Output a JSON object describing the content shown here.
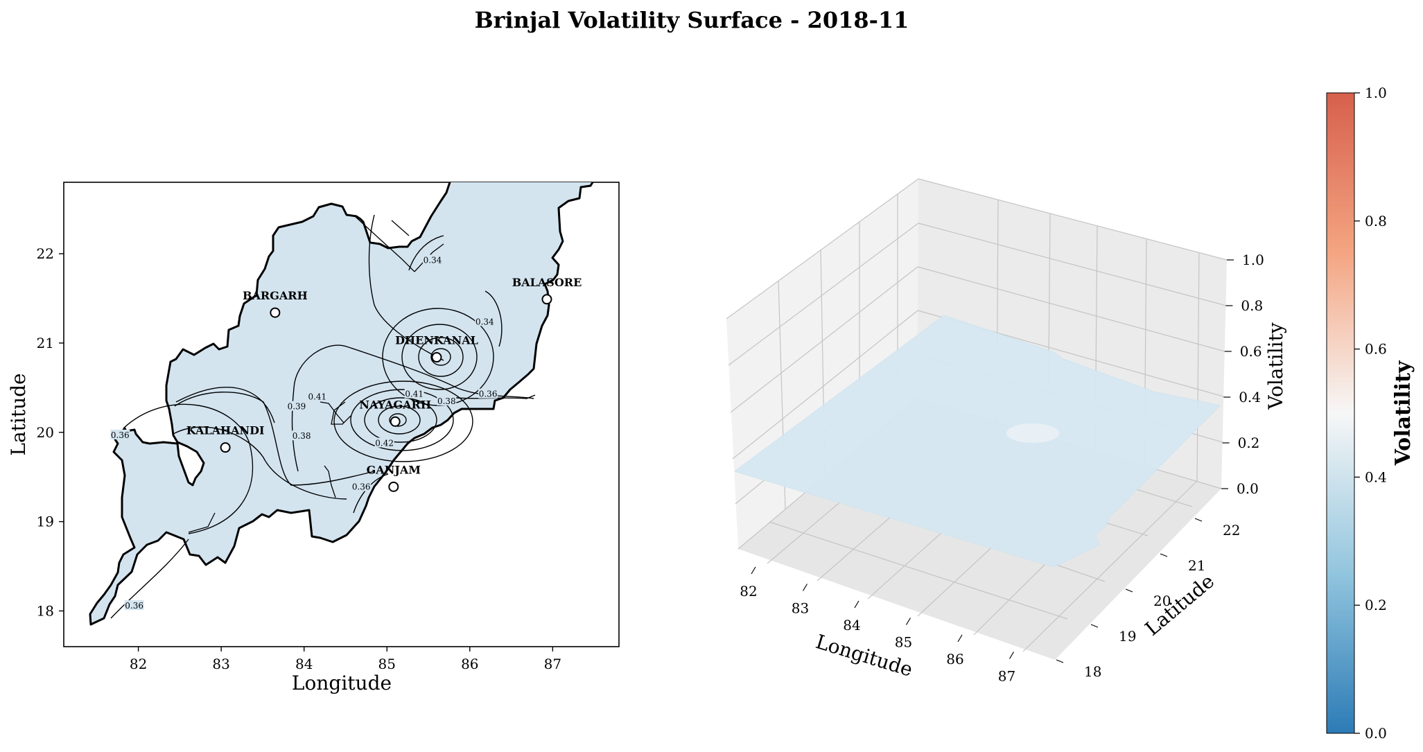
{
  "title": "Brinjal Volatility Surface - 2018-11",
  "chart_data": [
    {
      "type": "heatmap",
      "subtype": "contour-map",
      "xlabel": "Longitude",
      "ylabel": "Latitude",
      "xlim": [
        81.1,
        87.8
      ],
      "ylim": [
        17.6,
        22.8
      ],
      "xticks": [
        "82",
        "83",
        "84",
        "85",
        "86",
        "87"
      ],
      "yticks": [
        "18",
        "19",
        "20",
        "21",
        "22"
      ],
      "fill_color": "#d3e4ef",
      "districts": [
        {
          "name": "BARGARH",
          "lon": 83.65,
          "lat": 21.34
        },
        {
          "name": "BALASORE",
          "lon": 86.93,
          "lat": 21.49
        },
        {
          "name": "DHENKANAL",
          "lon": 85.6,
          "lat": 20.84
        },
        {
          "name": "NAYAGARH",
          "lon": 85.1,
          "lat": 20.12
        },
        {
          "name": "KALAHANDI",
          "lon": 83.05,
          "lat": 19.83
        },
        {
          "name": "GANJAM",
          "lon": 85.08,
          "lat": 19.39
        }
      ],
      "contour_labels": [
        {
          "text": "0.34",
          "lon": 85.55,
          "lat": 21.92
        },
        {
          "text": "0.34",
          "lon": 86.18,
          "lat": 21.23
        },
        {
          "text": "0.36",
          "lon": 86.22,
          "lat": 20.42
        },
        {
          "text": "0.38",
          "lon": 85.72,
          "lat": 20.34
        },
        {
          "text": "0.41",
          "lon": 85.33,
          "lat": 20.42
        },
        {
          "text": "0.42",
          "lon": 84.97,
          "lat": 19.87
        },
        {
          "text": "0.41",
          "lon": 84.16,
          "lat": 20.39
        },
        {
          "text": "0.39",
          "lon": 83.91,
          "lat": 20.28
        },
        {
          "text": "0.38",
          "lon": 83.97,
          "lat": 19.95
        },
        {
          "text": "0.36",
          "lon": 84.69,
          "lat": 19.38
        },
        {
          "text": "0.36",
          "lon": 81.78,
          "lat": 19.96
        },
        {
          "text": "0.36",
          "lon": 81.95,
          "lat": 18.05
        }
      ]
    },
    {
      "type": "surface",
      "xlabel": "Longitude",
      "ylabel": "Latitude",
      "zlabel": "Volatility",
      "xticks": [
        "82",
        "83",
        "84",
        "85",
        "86",
        "87"
      ],
      "yticks": [
        "18",
        "19",
        "20",
        "21",
        "22"
      ],
      "zticks": [
        "0.0",
        "0.2",
        "0.4",
        "0.6",
        "0.8",
        "1.0"
      ],
      "zlim": [
        0,
        1
      ],
      "approx_surface_value": 0.36
    }
  ],
  "colorbar": {
    "label": "Volatility",
    "ticks": [
      "0.0",
      "0.2",
      "0.4",
      "0.6",
      "0.8",
      "1.0"
    ],
    "colormap": "RdBu_r",
    "colors": [
      "#2c7bb6",
      "#92c5de",
      "#f7f7f7",
      "#f4a582",
      "#d6604d"
    ]
  }
}
